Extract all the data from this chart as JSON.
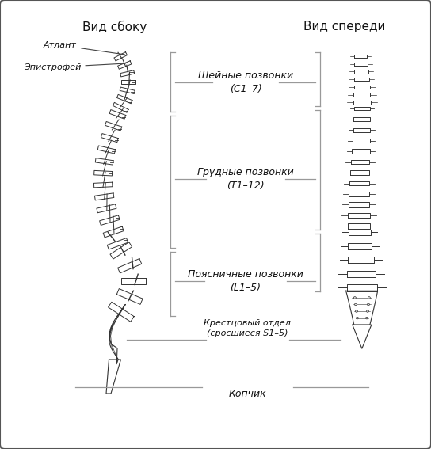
{
  "title_left": "Вид сбоку",
  "title_right": "Вид спереди",
  "label_atlas": "Атлант",
  "label_epistropheus": "Эпистрофей",
  "label_cervical": "Шейные позвонки\n(С1–7)",
  "label_thoracic": "Грудные позвонки\n(Т1–12)",
  "label_lumbar": "Поясничные позвонки\n(L1–5)",
  "label_sacral": "Крестцовый отдел\n(сросшиеся S1–5)",
  "label_coccyx": "Копчик",
  "bg_color": "#f0f0f0",
  "border_color": "#555555",
  "line_color": "#999999",
  "bracket_color": "#999999",
  "text_color": "#111111",
  "spine_color": "#333333",
  "spine_fill": "#ffffff"
}
